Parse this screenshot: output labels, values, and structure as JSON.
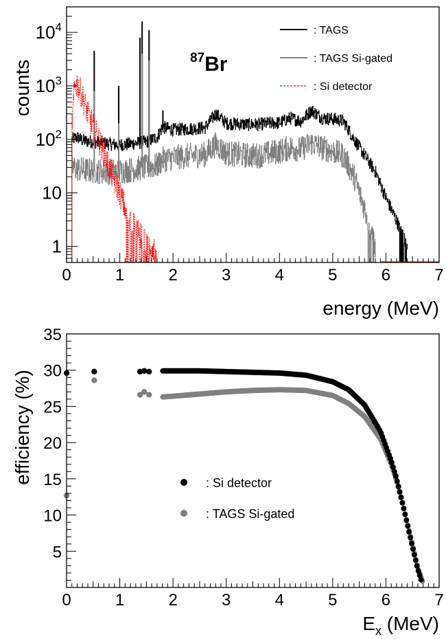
{
  "chart_data": [
    {
      "type": "line",
      "title": "",
      "annotation": {
        "isotope_mass": "87",
        "isotope_symbol": "Br"
      },
      "xlabel": "energy (MeV)",
      "ylabel": "counts",
      "xlim": [
        0,
        7
      ],
      "ylim": [
        0.5,
        30000
      ],
      "yscale": "log",
      "grid": false,
      "legend_position": "top-right",
      "x_ticks": [
        "0",
        "1",
        "2",
        "3",
        "4",
        "5",
        "6",
        "7"
      ],
      "y_ticks": [
        {
          "value": 1,
          "base": "1",
          "exp": ""
        },
        {
          "value": 10,
          "base": "10",
          "exp": ""
        },
        {
          "value": 100,
          "base": "10",
          "exp": "2"
        },
        {
          "value": 1000,
          "base": "10",
          "exp": "3"
        },
        {
          "value": 10000,
          "base": "10",
          "exp": "4"
        }
      ],
      "series": [
        {
          "name": ": TAGS",
          "color": "#000000",
          "style": "solid",
          "x": [
            0.1,
            0.2,
            0.3,
            0.5,
            0.7,
            0.9,
            1.1,
            1.3,
            1.5,
            1.7,
            1.8,
            2.0,
            2.2,
            2.4,
            2.6,
            2.8,
            3.0,
            3.2,
            3.4,
            3.6,
            3.8,
            4.0,
            4.2,
            4.4,
            4.6,
            4.8,
            5.0,
            5.2,
            5.4,
            5.6,
            5.8,
            6.0,
            6.2,
            6.4
          ],
          "y": [
            100,
            110,
            95,
            90,
            85,
            80,
            80,
            85,
            90,
            110,
            170,
            150,
            155,
            160,
            165,
            300,
            200,
            195,
            190,
            190,
            200,
            205,
            250,
            220,
            350,
            250,
            240,
            220,
            100,
            50,
            25,
            8,
            3,
            1
          ],
          "peaks": [
            [
              0.52,
              4500
            ],
            [
              0.98,
              1000
            ],
            [
              1.38,
              8000
            ],
            [
              1.42,
              16000
            ],
            [
              1.55,
              11000
            ],
            [
              1.81,
              350
            ]
          ]
        },
        {
          "name": ": TAGS Si-gated",
          "color": "#808080",
          "style": "solid",
          "x": [
            0.1,
            0.2,
            0.3,
            0.5,
            0.7,
            0.9,
            1.1,
            1.3,
            1.5,
            1.7,
            1.8,
            2.0,
            2.2,
            2.4,
            2.6,
            2.8,
            3.0,
            3.2,
            3.4,
            3.6,
            3.8,
            4.0,
            4.2,
            4.4,
            4.6,
            4.8,
            5.0,
            5.2,
            5.4,
            5.6,
            5.8
          ],
          "y": [
            30,
            28,
            27,
            26,
            25,
            25,
            26,
            28,
            30,
            32,
            42,
            45,
            48,
            50,
            52,
            80,
            55,
            52,
            50,
            50,
            55,
            60,
            70,
            65,
            85,
            70,
            60,
            50,
            20,
            5,
            1
          ],
          "peaks": [
            [
              0.52,
              800
            ],
            [
              0.98,
              200
            ],
            [
              1.42,
              4000
            ],
            [
              1.55,
              3000
            ]
          ]
        },
        {
          "name": ": Si detector",
          "color": "#ff0000",
          "style": "dashed",
          "x": [
            0.1,
            0.15,
            0.2,
            0.3,
            0.4,
            0.5,
            0.6,
            0.7,
            0.8,
            0.9,
            1.0,
            1.1,
            1.2,
            1.3,
            1.4,
            1.5,
            1.6,
            1.7
          ],
          "y": [
            200,
            1000,
            1100,
            600,
            300,
            170,
            100,
            55,
            30,
            17,
            10,
            5,
            3,
            2,
            1.5,
            1,
            1,
            0.8
          ]
        }
      ]
    },
    {
      "type": "scatter",
      "title": "",
      "xlabel_main": "E",
      "xlabel_sub": "x",
      "xlabel_unit": " (MeV)",
      "ylabel": "efficiency (%)",
      "xlim": [
        0,
        7
      ],
      "ylim": [
        0,
        35
      ],
      "grid": false,
      "legend_position": "center-left",
      "x_ticks": [
        "0",
        "1",
        "2",
        "3",
        "4",
        "5",
        "6",
        "7"
      ],
      "y_ticks": [
        "5",
        "10",
        "15",
        "20",
        "25",
        "30",
        "35"
      ],
      "series": [
        {
          "name": ": Si detector",
          "color": "#000000",
          "x": [
            0,
            0.52,
            1.38,
            1.46,
            1.55,
            1.81,
            2.0,
            2.5,
            3.0,
            3.5,
            4.0,
            4.5,
            5.0,
            5.3,
            5.6,
            5.9,
            6.1,
            6.2,
            6.3,
            6.4,
            6.5,
            6.6,
            6.68
          ],
          "y": [
            29.6,
            29.8,
            29.8,
            29.9,
            29.8,
            29.9,
            29.9,
            29.9,
            29.8,
            29.7,
            29.6,
            29.3,
            28.4,
            27.3,
            25.2,
            21.5,
            17.5,
            15.0,
            12.0,
            8.8,
            5.6,
            2.5,
            0.6
          ]
        },
        {
          "name": ": TAGS Si-gated",
          "color": "#808080",
          "x": [
            0,
            0.52,
            1.38,
            1.46,
            1.55,
            1.81,
            2.0,
            2.5,
            3.0,
            3.5,
            4.0,
            4.5,
            5.0,
            5.3,
            5.6,
            5.9,
            6.1,
            6.2,
            6.3,
            6.4,
            6.5,
            6.6,
            6.7
          ],
          "y": [
            12.7,
            28.6,
            26.6,
            27.0,
            26.6,
            26.3,
            26.4,
            26.7,
            27.0,
            27.2,
            27.3,
            27.2,
            26.5,
            25.4,
            23.6,
            20.5,
            17.0,
            14.8,
            12.0,
            8.9,
            5.8,
            2.6,
            0.6
          ]
        }
      ]
    }
  ]
}
